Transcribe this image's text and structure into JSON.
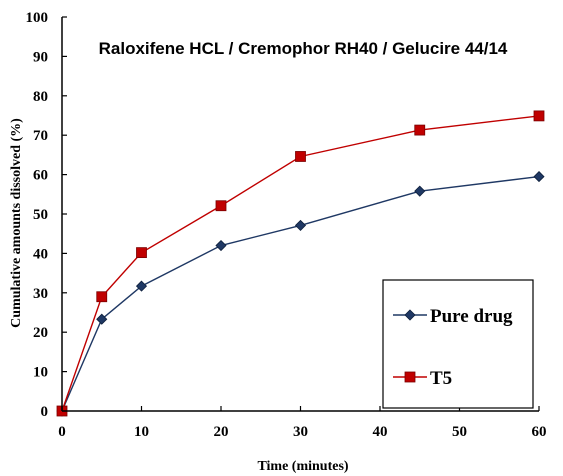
{
  "chart_data": {
    "type": "line",
    "title": "Raloxifene HCL / Cremophor RH40 / Gelucire 44/14",
    "xlabel": "Time (minutes)",
    "ylabel": "Cumulative amounts dissolved (%)",
    "xlim": [
      0,
      60
    ],
    "ylim": [
      0,
      100
    ],
    "xticks": [
      0,
      10,
      20,
      30,
      40,
      50,
      60
    ],
    "yticks": [
      0,
      10,
      20,
      30,
      40,
      50,
      60,
      70,
      80,
      90,
      100
    ],
    "x": [
      0,
      5,
      10,
      20,
      30,
      45,
      60
    ],
    "grid": false,
    "legend_position": "bottom-right",
    "series": [
      {
        "name": "Pure drug",
        "values": [
          0,
          23.3,
          31.7,
          42.0,
          47.1,
          55.8,
          59.5
        ],
        "color": "#1f3864",
        "marker": "diamond"
      },
      {
        "name": "T5",
        "values": [
          0,
          29.0,
          40.2,
          52.1,
          64.6,
          71.3,
          74.9
        ],
        "color": "#c00000",
        "marker": "square"
      }
    ]
  }
}
